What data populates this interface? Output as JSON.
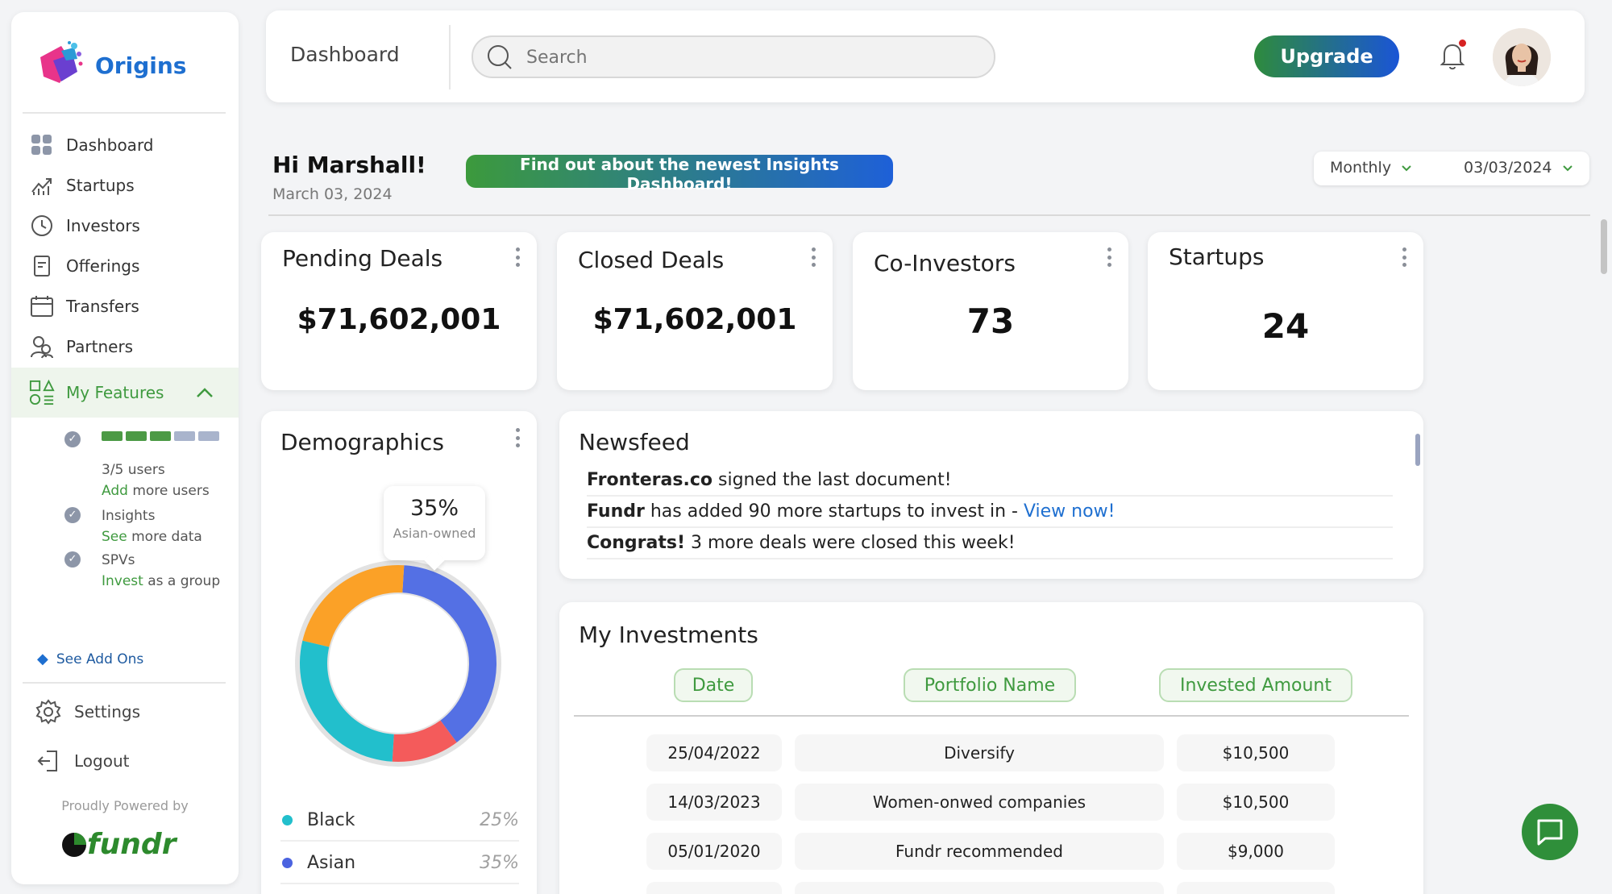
{
  "brand": {
    "name": "Origins"
  },
  "sidebar": {
    "items": [
      {
        "label": "Dashboard",
        "icon": "grid-icon"
      },
      {
        "label": "Startups",
        "icon": "chart-trend-icon"
      },
      {
        "label": "Investors",
        "icon": "clock-icon"
      },
      {
        "label": "Offerings",
        "icon": "document-icon"
      },
      {
        "label": "Transfers",
        "icon": "calendar-icon"
      },
      {
        "label": "Partners",
        "icon": "users-icon"
      }
    ],
    "features_label": "My Features",
    "features": {
      "users": {
        "progress": 0.6,
        "count": "3/5 users",
        "link_green": "Add",
        "link_rest": " more users"
      },
      "insights": {
        "label": "Insights",
        "link_green": "See",
        "link_rest": " more data"
      },
      "spvs": {
        "label": "SPVs",
        "link_green": "Invest",
        "link_rest": " as a group"
      }
    },
    "add_ons": "See Add Ons",
    "settings": "Settings",
    "logout": "Logout",
    "powered_by": "Proudly Powered by",
    "powered_brand": "fundr"
  },
  "topbar": {
    "title": "Dashboard",
    "search_placeholder": "Search",
    "upgrade": "Upgrade"
  },
  "greeting": {
    "hello": "Hi Marshall!",
    "date": "March 03, 2024",
    "promo": "Find out about the newest Insights Dashboard!",
    "period": "Monthly",
    "date_filter": "03/03/2024"
  },
  "stats": [
    {
      "title": "Pending Deals",
      "value": "$71,602,001"
    },
    {
      "title": "Closed Deals",
      "value": "$71,602,001"
    },
    {
      "title": "Co-Investors",
      "value": "73"
    },
    {
      "title": "Startups",
      "value": "24"
    }
  ],
  "demographics": {
    "title": "Demographics",
    "tooltip_value": "35%",
    "tooltip_label": "Asian-owned",
    "legend": [
      {
        "label": "Black",
        "pct": "25%",
        "color": "#22bfcc"
      },
      {
        "label": "Asian",
        "pct": "35%",
        "color": "#4b63e0"
      }
    ]
  },
  "chart_data": {
    "type": "pie",
    "segments": [
      {
        "label": "Asian",
        "value": 35,
        "color": "#5470e4"
      },
      {
        "label": "",
        "value": 10,
        "color": "#f45b5b"
      },
      {
        "label": "Black",
        "value": 25,
        "color": "#22bfcc"
      },
      {
        "label": "",
        "value": 20,
        "color": "#fba127"
      }
    ]
  },
  "newsfeed": {
    "title": "Newsfeed",
    "items": [
      {
        "bold": "Fronteras.co",
        "text": " signed the last document!",
        "link": ""
      },
      {
        "bold": "Fundr",
        "text": " has added 90 more startups to invest in - ",
        "link": "View now!"
      },
      {
        "bold": "Congrats!",
        "text": " 3 more deals were closed this week!",
        "link": ""
      }
    ]
  },
  "investments": {
    "title": "My Investments",
    "columns": [
      "Date",
      "Portfolio Name",
      "Invested Amount"
    ],
    "rows": [
      {
        "date": "25/04/2022",
        "name": "Diversify",
        "amount": "$10,500"
      },
      {
        "date": "14/03/2023",
        "name": "Women-onwed companies",
        "amount": "$10,500"
      },
      {
        "date": "05/01/2020",
        "name": "Fundr recommended",
        "amount": "$9,000"
      }
    ]
  },
  "colors": {
    "brand_green": "#3f9a3f",
    "brand_blue": "#1e6fd0"
  }
}
